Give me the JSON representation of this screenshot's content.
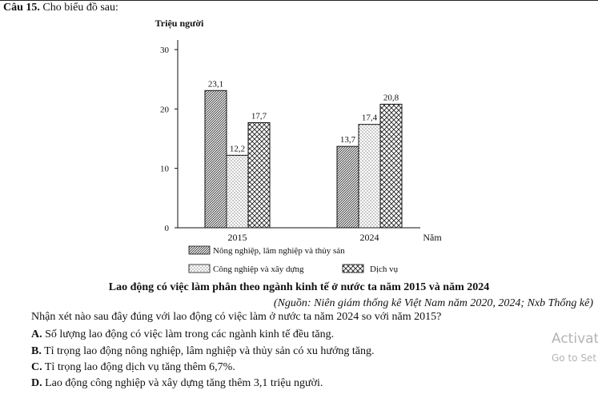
{
  "question": {
    "number": "Câu 15.",
    "intro": "Cho biểu đồ sau:",
    "prompt": "Nhận xét nào sau đây đúng với lao động có việc làm ở nước ta năm 2024 so với năm 2015?",
    "options": [
      {
        "key": "A.",
        "text": "Số lượng lao động có việc làm trong các ngành kinh tế đều tăng."
      },
      {
        "key": "B.",
        "text": "Tỉ trọng lao động nông nghiệp, lâm nghiệp và thủy sản có xu hướng tăng."
      },
      {
        "key": "C.",
        "text": "Tỉ trọng lao động dịch vụ tăng thêm 6,7%."
      },
      {
        "key": "D.",
        "text": "Lao động công nghiệp và xây dựng tăng thêm 3,1 triệu người."
      }
    ]
  },
  "chart_data": {
    "type": "bar",
    "title": "Lao động có việc làm phân theo ngành kinh tế ở nước ta năm 2015 và năm 2024",
    "source": "(Nguồn: Niên giám thống kê Việt Nam năm 2020, 2024; Nxb Thống kê)",
    "ylabel": "Triệu người",
    "xlabel": "Năm",
    "ylim": [
      0,
      30
    ],
    "yticks": [
      {
        "value": 0,
        "label": "0"
      },
      {
        "value": 10,
        "label": "10"
      },
      {
        "value": 20,
        "label": "20"
      },
      {
        "value": 30,
        "label": "30"
      }
    ],
    "categories": [
      "2015",
      "2024"
    ],
    "series": [
      {
        "name": "Nông nghiệp, lâm nghiệp và thủy sản",
        "pattern": "diagonal",
        "values": [
          23.1,
          13.7
        ],
        "labels": [
          "23,1",
          "13,7"
        ]
      },
      {
        "name": "Công nghiệp và xây dựng",
        "pattern": "dots",
        "values": [
          12.2,
          17.4
        ],
        "labels": [
          "12,2",
          "17,4"
        ]
      },
      {
        "name": "Dịch vụ",
        "pattern": "crosshatch",
        "values": [
          17.7,
          20.8
        ],
        "labels": [
          "17,7",
          "20,8"
        ]
      }
    ]
  },
  "watermark": {
    "line1": "Activat",
    "line2": "Go to Set"
  }
}
